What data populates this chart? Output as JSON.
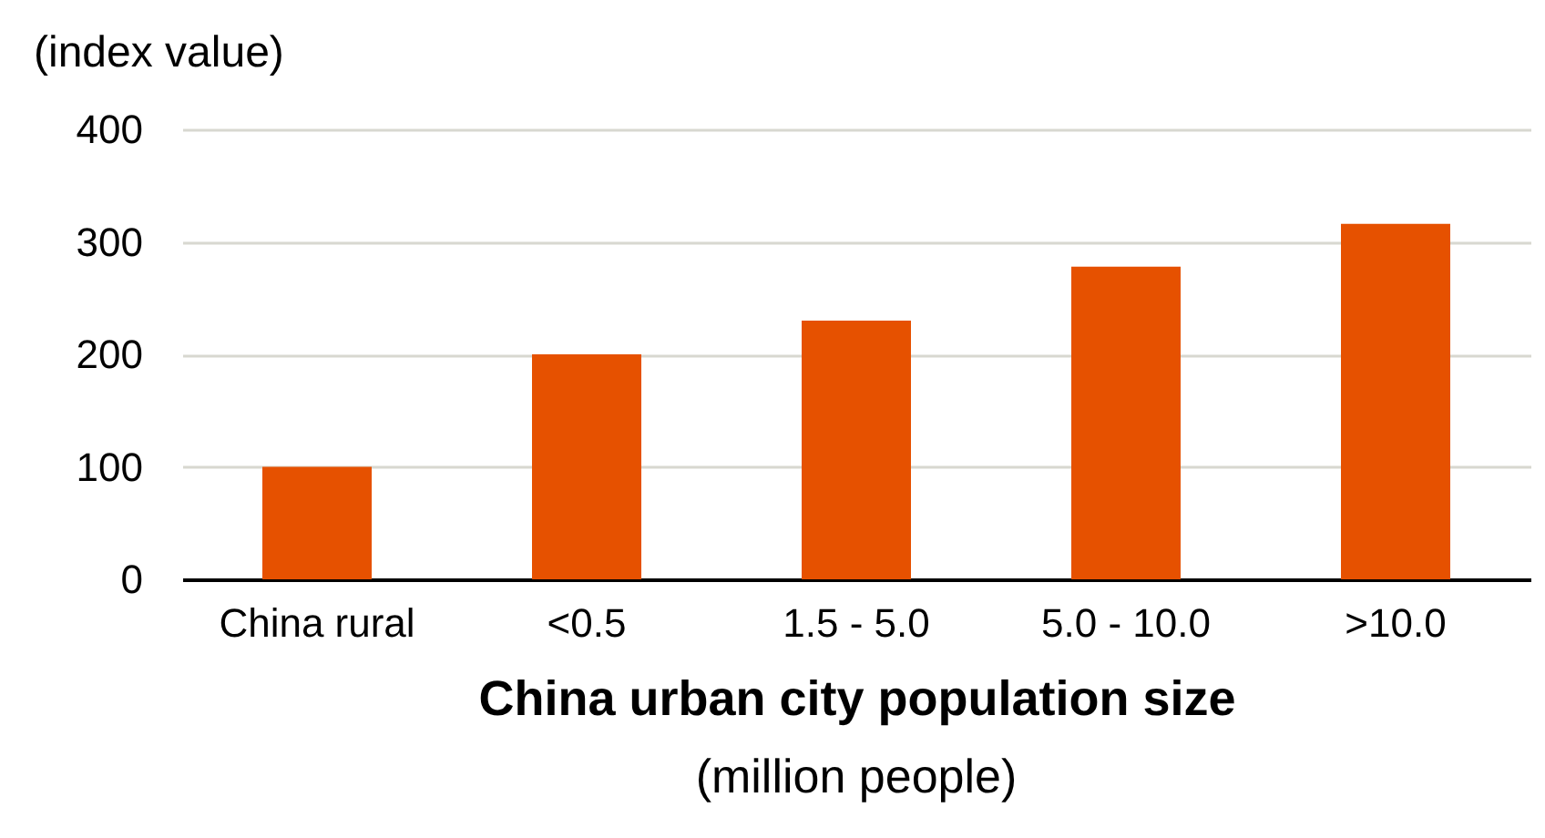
{
  "chart_data": {
    "type": "bar",
    "ylabel": "(index value)",
    "xlabel": "China urban city population size",
    "annotations": [
      "(million people)"
    ],
    "categories": [
      "China rural",
      "<0.5",
      "1.5 - 5.0",
      "5.0 - 10.0",
      ">10.0"
    ],
    "values": [
      100,
      200,
      230,
      278,
      316
    ],
    "color": "#e65100",
    "ylim": [
      0,
      400
    ],
    "yticks": [
      0,
      100,
      200,
      300,
      400
    ],
    "grid": "y"
  }
}
